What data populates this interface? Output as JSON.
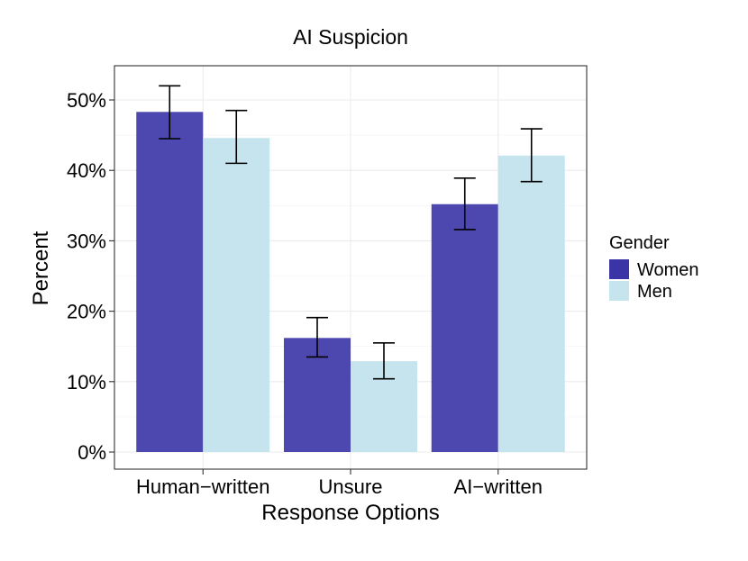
{
  "chart_data": {
    "type": "bar",
    "title": "AI Suspicion",
    "xlabel": "Response Options",
    "ylabel": "Percent",
    "categories": [
      "Human−written",
      "Unsure",
      "AI−written"
    ],
    "ylim": [
      0,
      0.55
    ],
    "yticks": [
      0,
      0.1,
      0.2,
      0.3,
      0.4,
      0.5
    ],
    "ytick_labels": [
      "0%",
      "10%",
      "20%",
      "30%",
      "40%",
      "50%"
    ],
    "grid": true,
    "legend": {
      "title": "Gender",
      "position": "right"
    },
    "series": [
      {
        "name": "Women",
        "color": "#3a34a6",
        "values": [
          0.483,
          0.162,
          0.352
        ],
        "error_low": [
          0.445,
          0.135,
          0.316
        ],
        "error_high": [
          0.52,
          0.191,
          0.389
        ]
      },
      {
        "name": "Men",
        "color": "#c5e4ee",
        "values": [
          0.446,
          0.129,
          0.421
        ],
        "error_low": [
          0.41,
          0.104,
          0.384
        ],
        "error_high": [
          0.485,
          0.155,
          0.459
        ]
      }
    ]
  }
}
